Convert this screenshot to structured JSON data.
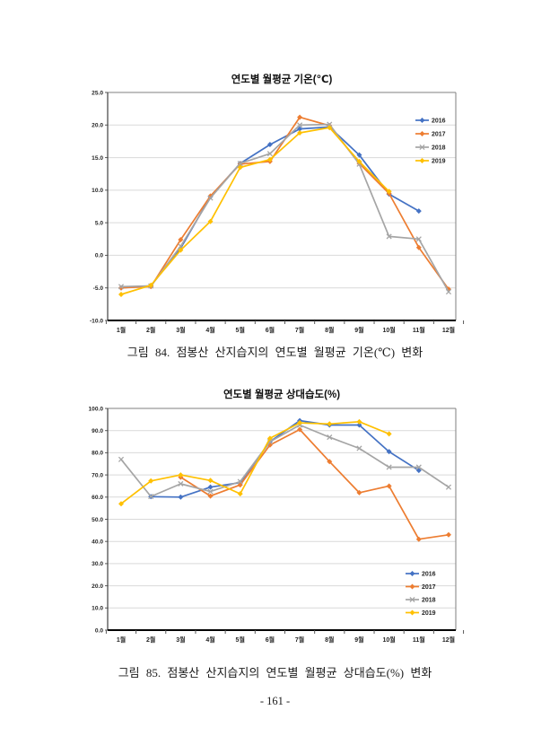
{
  "page": {
    "number_label": "- 161 -"
  },
  "figures": [
    {
      "title": "연도별 월평균 기온(℃)",
      "caption": "그림 84. 점봉산 산지습지의 연도별 월평균 기온(℃) 변화"
    },
    {
      "title": "연도별 월평균 상대습도(%)",
      "caption": "그림 85. 점봉산 산지습지의 연도별 월평균 상대습도(%) 변화"
    }
  ],
  "chart_data": [
    {
      "type": "line",
      "title": "연도별 월평균 기온(℃)",
      "xlabel": "",
      "ylabel": "",
      "ylim": [
        -10,
        25
      ],
      "ystep": 5,
      "grid": true,
      "legend_position": "top-right",
      "categories": [
        "1월",
        "2월",
        "3월",
        "4월",
        "5월",
        "6월",
        "7월",
        "8월",
        "9월",
        "10월",
        "11월",
        "12월"
      ],
      "series": [
        {
          "name": "2016",
          "color": "#4472C4",
          "marker": "diamond",
          "values": [
            -5.0,
            -4.7,
            1.1,
            9.0,
            14.1,
            17.0,
            19.4,
            19.7,
            15.4,
            9.4,
            6.8,
            null
          ]
        },
        {
          "name": "2017",
          "color": "#ED7D31",
          "marker": "diamond",
          "values": [
            -5.0,
            -4.8,
            2.4,
            9.1,
            14.0,
            14.4,
            21.2,
            19.9,
            14.1,
            9.5,
            1.2,
            -5.2
          ]
        },
        {
          "name": "2018",
          "color": "#A5A5A5",
          "marker": "x",
          "values": [
            -4.8,
            -4.7,
            1.4,
            8.8,
            14.1,
            15.6,
            20.0,
            20.1,
            14.0,
            2.9,
            2.5,
            -5.6
          ]
        },
        {
          "name": "2019",
          "color": "#FFC000",
          "marker": "diamond",
          "values": [
            -6.0,
            -4.6,
            0.8,
            5.2,
            13.5,
            14.7,
            18.8,
            19.6,
            14.4,
            9.8,
            null,
            null
          ]
        }
      ]
    },
    {
      "type": "line",
      "title": "연도별 월평균 상대습도(%)",
      "xlabel": "",
      "ylabel": "",
      "ylim": [
        0,
        100
      ],
      "ystep": 10,
      "grid": true,
      "legend_position": "bottom-right",
      "categories": [
        "1월",
        "2월",
        "3월",
        "4월",
        "5월",
        "6월",
        "7월",
        "8월",
        "9월",
        "10월",
        "11월",
        "12월"
      ],
      "series": [
        {
          "name": "2016",
          "color": "#4472C4",
          "marker": "diamond",
          "values": [
            null,
            60.2,
            60.0,
            64.5,
            66.5,
            85.0,
            94.5,
            92.5,
            92.5,
            80.5,
            72.0,
            null
          ]
        },
        {
          "name": "2017",
          "color": "#ED7D31",
          "marker": "diamond",
          "values": [
            null,
            null,
            69.0,
            60.5,
            65.5,
            83.5,
            90.5,
            76.0,
            62.0,
            65.0,
            41.0,
            43.0
          ]
        },
        {
          "name": "2018",
          "color": "#A5A5A5",
          "marker": "x",
          "values": [
            77.0,
            60.3,
            66.0,
            62.5,
            67.0,
            85.0,
            92.5,
            87.0,
            82.0,
            73.5,
            73.5,
            64.5
          ]
        },
        {
          "name": "2019",
          "color": "#FFC000",
          "marker": "diamond",
          "values": [
            57.0,
            67.3,
            70.0,
            67.5,
            61.5,
            86.5,
            93.5,
            93.0,
            94.0,
            88.5,
            null,
            null
          ]
        }
      ]
    }
  ]
}
